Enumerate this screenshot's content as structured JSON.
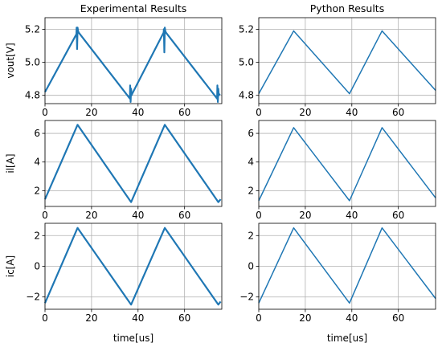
{
  "chart_data": [
    {
      "id": "exp-vout",
      "type": "line",
      "column": "Experimental Results",
      "title": "Experimental Results",
      "xlabel": "",
      "ylabel": "vout[V]",
      "xlim": [
        0,
        76
      ],
      "ylim": [
        4.75,
        5.27
      ],
      "xticks": [
        0,
        20,
        40,
        60
      ],
      "yticks": [
        4.8,
        5.0,
        5.2
      ],
      "color": "#1f77b4",
      "series": [
        {
          "x": [
            0,
            13.5,
            13.6,
            13.8,
            14.0,
            14.2,
            14.5,
            36.5,
            36.6,
            36.8,
            37.0,
            37.2,
            37.5,
            51.0,
            51.1,
            51.3,
            51.5,
            51.7,
            52.0,
            74.0,
            74.1,
            74.3,
            74.5,
            74.7,
            75.2
          ],
          "y": [
            4.82,
            5.17,
            5.21,
            5.08,
            5.21,
            5.19,
            5.18,
            4.78,
            4.86,
            4.76,
            4.84,
            4.8,
            4.81,
            5.18,
            5.2,
            5.06,
            5.21,
            5.19,
            5.18,
            4.78,
            4.86,
            4.76,
            4.84,
            4.8,
            4.81
          ]
        }
      ]
    },
    {
      "id": "py-vout",
      "type": "line",
      "column": "Python Results",
      "title": "Python Results",
      "xlabel": "",
      "ylabel": "",
      "xlim": [
        0,
        76
      ],
      "ylim": [
        4.75,
        5.27
      ],
      "xticks": [
        0,
        20,
        40,
        60
      ],
      "yticks": [
        4.8,
        5.0,
        5.2
      ],
      "color": "#1f77b4",
      "series": [
        {
          "x": [
            0,
            15,
            39,
            53,
            76
          ],
          "y": [
            4.81,
            5.19,
            4.81,
            5.19,
            4.83
          ]
        }
      ]
    },
    {
      "id": "exp-il",
      "type": "line",
      "column": "Experimental Results",
      "title": "",
      "xlabel": "",
      "ylabel": "il[A]",
      "xlim": [
        0,
        76
      ],
      "ylim": [
        0.9,
        6.9
      ],
      "xticks": [
        0,
        20,
        40,
        60
      ],
      "yticks": [
        2,
        4,
        6
      ],
      "color": "#1f77b4",
      "series": [
        {
          "x": [
            0,
            14,
            37,
            51.5,
            74.5,
            75.5
          ],
          "y": [
            1.4,
            6.6,
            1.2,
            6.6,
            1.2,
            1.4
          ]
        }
      ]
    },
    {
      "id": "py-il",
      "type": "line",
      "column": "Python Results",
      "title": "",
      "xlabel": "",
      "ylabel": "",
      "xlim": [
        0,
        76
      ],
      "ylim": [
        0.9,
        6.9
      ],
      "xticks": [
        0,
        20,
        40,
        60
      ],
      "yticks": [
        2,
        4,
        6
      ],
      "color": "#1f77b4",
      "series": [
        {
          "x": [
            0,
            15,
            39,
            53,
            76
          ],
          "y": [
            1.3,
            6.4,
            1.3,
            6.4,
            1.5
          ]
        }
      ]
    },
    {
      "id": "exp-ic",
      "type": "line",
      "column": "Experimental Results",
      "title": "",
      "xlabel": "time[us]",
      "ylabel": "ic[A]",
      "xlim": [
        0,
        76
      ],
      "ylim": [
        -2.8,
        2.8
      ],
      "xticks": [
        0,
        20,
        40,
        60
      ],
      "yticks": [
        -2,
        0,
        2
      ],
      "color": "#1f77b4",
      "series": [
        {
          "x": [
            0,
            14,
            37,
            51.5,
            74.5,
            75.5
          ],
          "y": [
            -2.4,
            2.5,
            -2.5,
            2.5,
            -2.5,
            -2.3
          ]
        }
      ]
    },
    {
      "id": "py-ic",
      "type": "line",
      "column": "Python Results",
      "title": "",
      "xlabel": "time[us]",
      "ylabel": "",
      "xlim": [
        0,
        76
      ],
      "ylim": [
        -2.8,
        2.8
      ],
      "xticks": [
        0,
        20,
        40,
        60
      ],
      "yticks": [
        -2,
        0,
        2
      ],
      "color": "#1f77b4",
      "series": [
        {
          "x": [
            0,
            15,
            39,
            53,
            76
          ],
          "y": [
            -2.4,
            2.5,
            -2.4,
            2.5,
            -2.1
          ]
        }
      ]
    }
  ]
}
